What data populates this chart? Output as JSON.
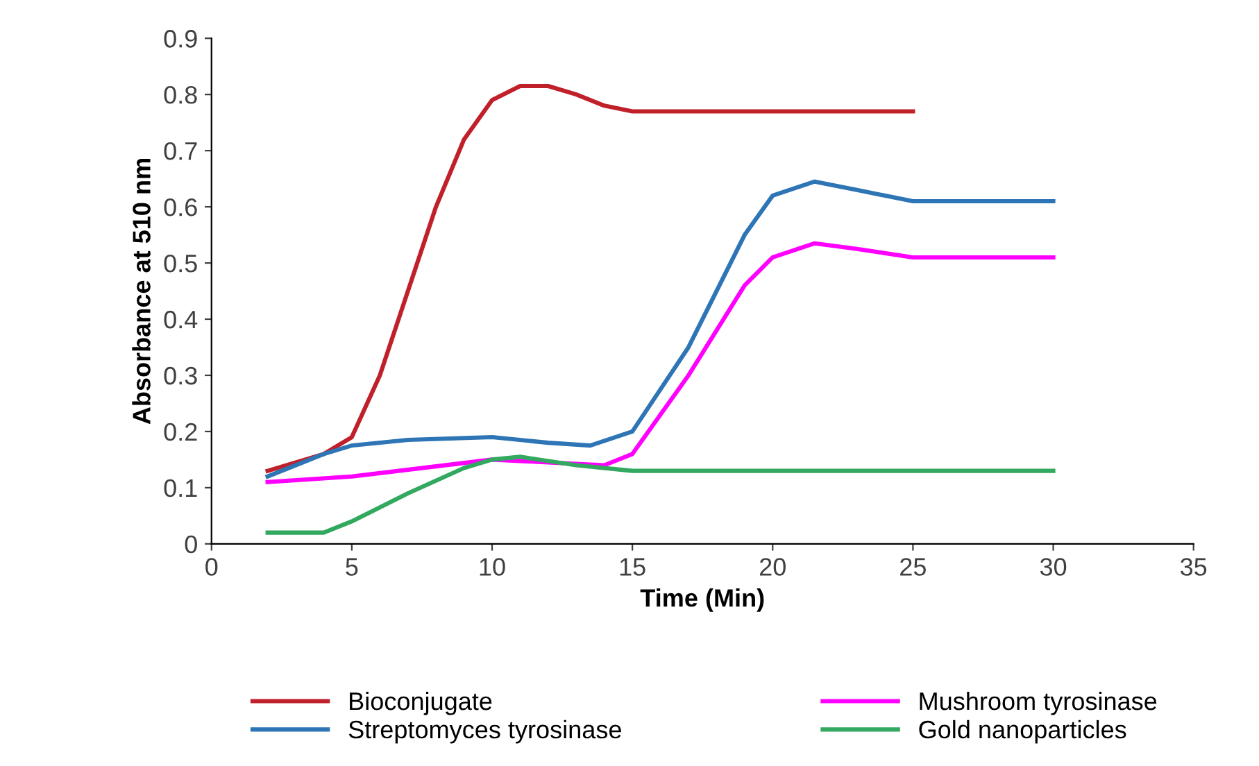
{
  "chart_data": {
    "type": "line",
    "xlabel": "Time (Min)",
    "ylabel": "Absorbance at 510 nm",
    "xlim": [
      0,
      35
    ],
    "xticks": [
      0,
      5,
      10,
      15,
      20,
      25,
      30,
      35
    ],
    "ylim": [
      0,
      0.9
    ],
    "yticks": [
      0,
      0.1,
      0.2,
      0.3,
      0.4,
      0.5,
      0.6,
      0.7,
      0.8,
      0.9
    ],
    "grid": false,
    "legend": "bottom",
    "marker": "none",
    "line_style": "solid",
    "series": [
      {
        "name": "Bioconjugate",
        "color": "#c0202a",
        "x": [
          2,
          4,
          5,
          6,
          7,
          8,
          9,
          10,
          11,
          12,
          13,
          14,
          15,
          20,
          25
        ],
        "values": [
          0.13,
          0.16,
          0.19,
          0.3,
          0.45,
          0.6,
          0.72,
          0.79,
          0.815,
          0.815,
          0.8,
          0.78,
          0.77,
          0.77,
          0.77
        ]
      },
      {
        "name": "Streptomyces tyrosinase",
        "color": "#2e75b6",
        "x": [
          2,
          4,
          5,
          7,
          10,
          12,
          13.5,
          15,
          17,
          19,
          20,
          21.5,
          23,
          25,
          30
        ],
        "values": [
          0.12,
          0.16,
          0.175,
          0.185,
          0.19,
          0.18,
          0.175,
          0.2,
          0.35,
          0.55,
          0.62,
          0.645,
          0.63,
          0.61,
          0.61
        ]
      },
      {
        "name": "Mushroom tyrosinase",
        "color": "#ff00ff",
        "x": [
          2,
          5,
          10,
          12,
          14,
          15,
          17,
          19,
          20,
          21.5,
          23,
          25,
          30
        ],
        "values": [
          0.11,
          0.12,
          0.15,
          0.145,
          0.14,
          0.16,
          0.3,
          0.46,
          0.51,
          0.535,
          0.525,
          0.51,
          0.51
        ]
      },
      {
        "name": "Gold nanoparticles",
        "color": "#33a860",
        "x": [
          2,
          4,
          5,
          7,
          9,
          10,
          11,
          13,
          15,
          20,
          30
        ],
        "values": [
          0.02,
          0.02,
          0.04,
          0.09,
          0.135,
          0.15,
          0.155,
          0.14,
          0.13,
          0.13,
          0.13
        ]
      }
    ]
  }
}
